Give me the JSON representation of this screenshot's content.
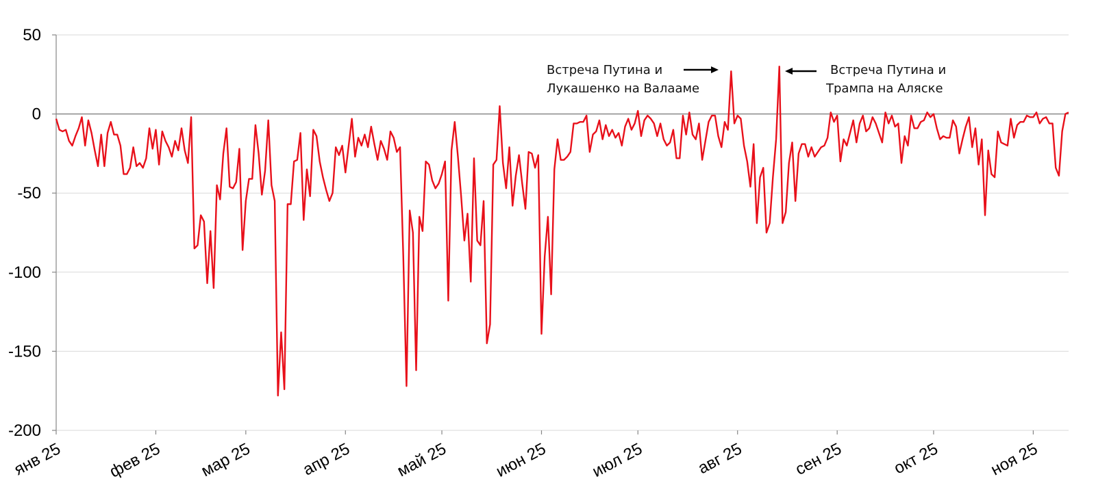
{
  "chart_data": {
    "type": "line",
    "title": "",
    "xlabel": "",
    "ylabel": "",
    "ylim": [
      -200,
      50
    ],
    "yticks": [
      50,
      0,
      -50,
      -100,
      -150,
      -200
    ],
    "ytick_labels": [
      "50",
      "0",
      "-50",
      "-100",
      "-150",
      "-200"
    ],
    "grid": true,
    "legend": "none",
    "x_tick_labels": [
      "янв 25",
      "фев 25",
      "мар 25",
      "апр 25",
      "май 25",
      "июн 25",
      "июл 25",
      "авг 25",
      "сен 25",
      "окт 25",
      "ноя 25"
    ],
    "x_start": "2025-01-01",
    "series": [
      {
        "color": "#e8101a",
        "values": [
          -3,
          -10,
          -11,
          -10,
          -17,
          -20,
          -14,
          -9,
          -2,
          -20,
          -4,
          -12,
          -23,
          -33,
          -13,
          -33,
          -12,
          -5,
          -13,
          -13,
          -20,
          -38,
          -38,
          -34,
          -21,
          -33,
          -31,
          -34,
          -28,
          -9,
          -22,
          -10,
          -32,
          -11,
          -17,
          -21,
          -27,
          -17,
          -23,
          -9,
          -23,
          -31,
          -2,
          -85,
          -83,
          -64,
          -68,
          -107,
          -74,
          -110,
          -45,
          -54,
          -25,
          -9,
          -46,
          -47,
          -43,
          -22,
          -86,
          -55,
          -41,
          -41,
          -7,
          -25,
          -51,
          -36,
          -4,
          -45,
          -55,
          -178,
          -138,
          -174,
          -57,
          -57,
          -30,
          -29,
          -12,
          -67,
          -35,
          -52,
          -10,
          -14,
          -30,
          -40,
          -48,
          -55,
          -50,
          -21,
          -26,
          -20,
          -37,
          -20,
          -3,
          -27,
          -15,
          -20,
          -13,
          -21,
          -8,
          -19,
          -29,
          -17,
          -22,
          -29,
          -11,
          -15,
          -24,
          -21,
          -90,
          -172,
          -61,
          -75,
          -162,
          -65,
          -74,
          -30,
          -32,
          -42,
          -47,
          -44,
          -38,
          -30,
          -118,
          -23,
          -5,
          -27,
          -52,
          -80,
          -63,
          -106,
          -28,
          -80,
          -83,
          -55,
          -145,
          -133,
          -32,
          -29,
          5,
          -31,
          -47,
          -21,
          -58,
          -39,
          -26,
          -44,
          -60,
          -24,
          -25,
          -34,
          -26,
          -139,
          -90,
          -65,
          -114,
          -35,
          -16,
          -29,
          -29,
          -27,
          -24,
          -6,
          -6,
          -5,
          -5,
          -1,
          -24,
          -13,
          -11,
          -4,
          -16,
          -7,
          -14,
          -10,
          -15,
          -12,
          -20,
          -8,
          -3,
          -10,
          -6,
          2,
          -14,
          -4,
          -1,
          -3,
          -6,
          -14,
          -6,
          -16,
          -20,
          -18,
          -10,
          -28,
          -28,
          -1,
          -13,
          1,
          -13,
          -16,
          -6,
          -29,
          -17,
          -5,
          -1,
          -1,
          -14,
          -21,
          -5,
          -10,
          27,
          -6,
          -1,
          -3,
          -20,
          -30,
          -46,
          -19,
          -69,
          -40,
          -34,
          -75,
          -69,
          -40,
          -16,
          30,
          -69,
          -62,
          -31,
          -18,
          -55,
          -25,
          -19,
          -19,
          -27,
          -21,
          -27,
          -24,
          -21,
          -20,
          -15,
          1,
          -5,
          -1,
          -30,
          -16,
          -20,
          -12,
          -4,
          -18,
          -6,
          -1,
          -11,
          -9,
          -2,
          -6,
          -12,
          -18,
          1,
          -6,
          -1,
          -8,
          -6,
          -31,
          -14,
          -20,
          -1,
          -9,
          -9,
          -5,
          -4,
          1,
          -2,
          0,
          -9,
          -16,
          -14,
          -15,
          -15,
          -4,
          -8,
          -25,
          -16,
          -8,
          -2,
          -21,
          -9,
          -32,
          -16,
          -64,
          -23,
          -38,
          -40,
          -11,
          -18,
          -19,
          -20,
          -3,
          -15,
          -7,
          -5,
          -5,
          -1,
          -2,
          -2,
          1,
          -6,
          -3,
          -2,
          -6,
          -6,
          -34,
          -39,
          -11,
          0,
          1
        ]
      }
    ],
    "annotations": [
      {
        "lines": [
          "Встреча Путина и",
          "Лукашенко на Валааме"
        ],
        "arrow": "right"
      },
      {
        "lines": [
          "Встреча Путина и",
          "Трампа на Аляске"
        ],
        "arrow": "left"
      }
    ]
  }
}
